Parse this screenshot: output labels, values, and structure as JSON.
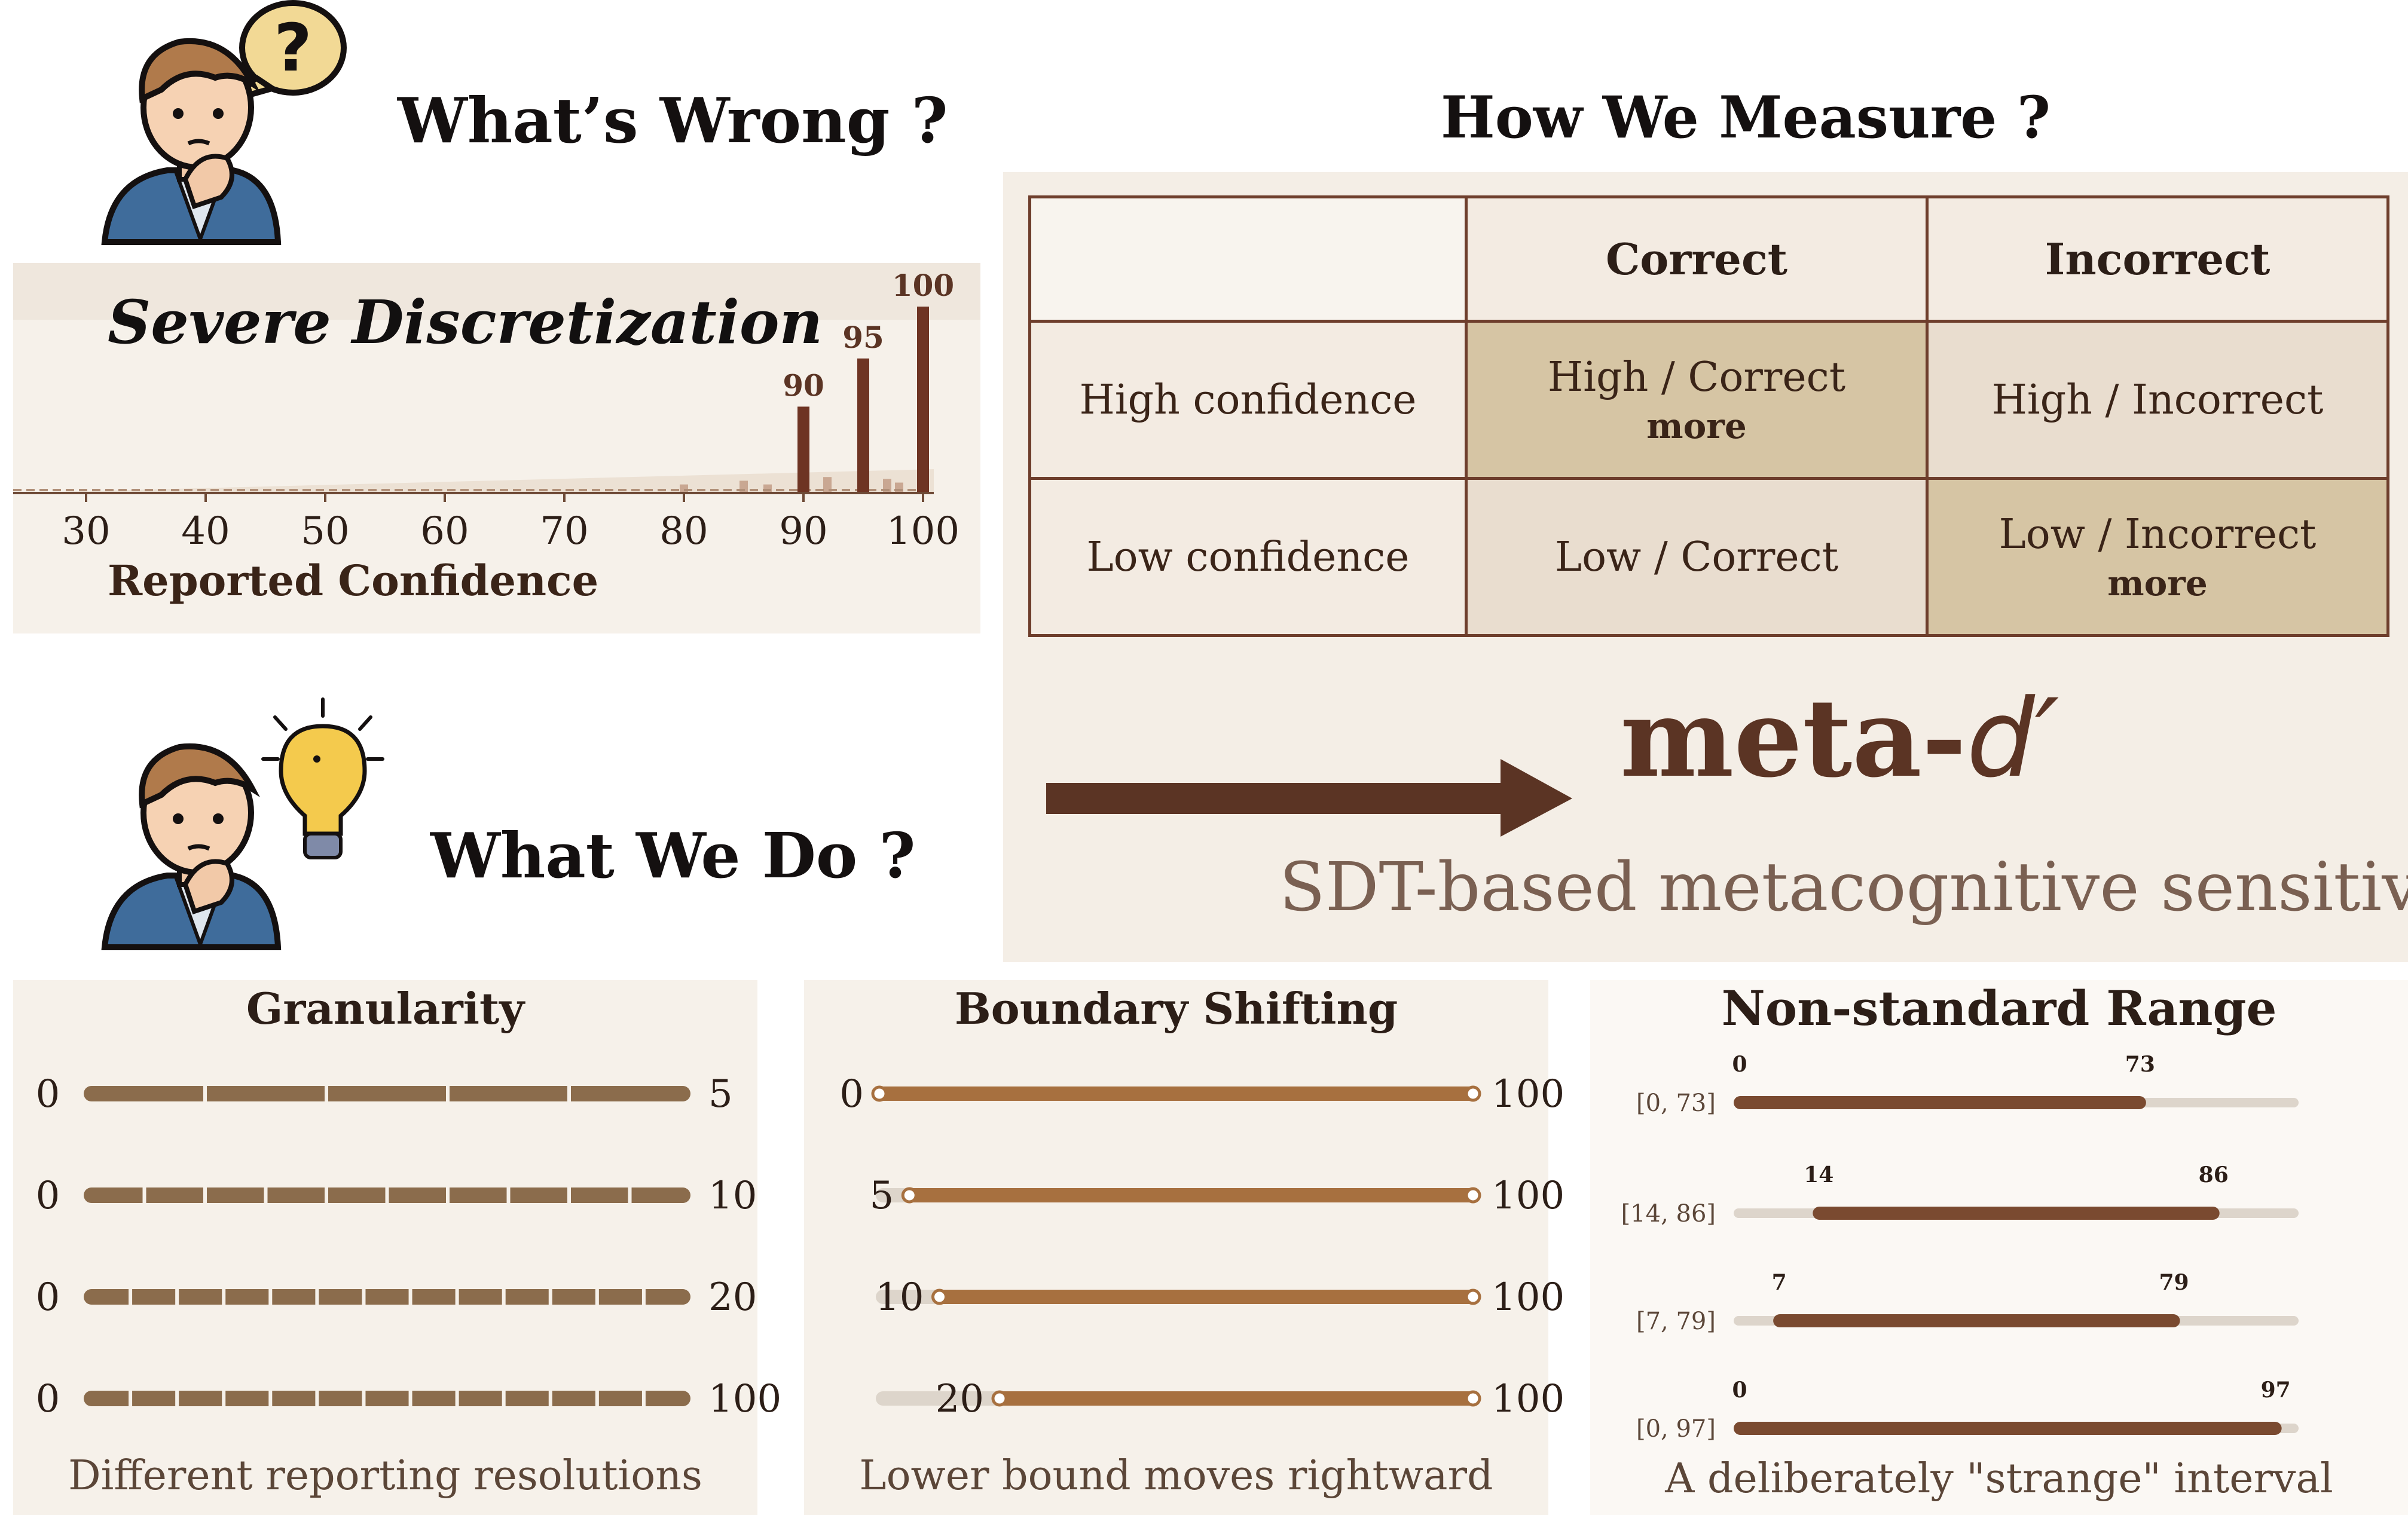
{
  "headings": {
    "whats_wrong": "What’s Wrong ?",
    "how_we_measure": "How We Measure ?",
    "what_we_do": "What We Do ?"
  },
  "discretization": {
    "title": "Severe Discretization",
    "xlabel": "Reported Confidence"
  },
  "chart_data": {
    "type": "bar",
    "title": "Severe Discretization",
    "xlabel": "Reported Confidence",
    "ylabel": "",
    "x_ticks": [
      30,
      40,
      50,
      60,
      70,
      80,
      90,
      100
    ],
    "xlim": [
      28,
      101
    ],
    "highlighted_bars": [
      {
        "x": 90,
        "value": 0.46,
        "label": "90"
      },
      {
        "x": 95,
        "value": 0.72,
        "label": "95"
      },
      {
        "x": 100,
        "value": 1.0,
        "label": "100"
      }
    ],
    "minor_bars": [
      {
        "x": 80,
        "value": 0.04
      },
      {
        "x": 85,
        "value": 0.06
      },
      {
        "x": 87,
        "value": 0.04
      },
      {
        "x": 92,
        "value": 0.08
      },
      {
        "x": 97,
        "value": 0.07
      },
      {
        "x": 98,
        "value": 0.05
      }
    ]
  },
  "table": {
    "col_headers": [
      "Correct",
      "Incorrect"
    ],
    "rows": [
      {
        "label": "High confidence",
        "correct": "High / Correct",
        "correct_note": "more",
        "incorrect": "High / Incorrect",
        "incorrect_note": ""
      },
      {
        "label": "Low confidence",
        "correct": "Low / Correct",
        "correct_note": "",
        "incorrect": "Low / Incorrect",
        "incorrect_note": "more"
      }
    ]
  },
  "meta": {
    "prefix": "meta-",
    "symbol": "d′",
    "subtitle": "SDT-based metacognitive sensitivity"
  },
  "granularity": {
    "title": "Granularity",
    "caption": "Different reporting resolutions",
    "bars": [
      {
        "min": "0",
        "max": "5",
        "segments": 5
      },
      {
        "min": "0",
        "max": "10",
        "segments": 10
      },
      {
        "min": "0",
        "max": "20",
        "segments": 20
      },
      {
        "min": "0",
        "max": "100",
        "segments": 20
      }
    ]
  },
  "boundary": {
    "title": "Boundary Shifting",
    "caption": "Lower bound moves rightward",
    "bars": [
      {
        "min": "0",
        "max": "100",
        "lo": 0,
        "hi": 100
      },
      {
        "min": "5",
        "max": "100",
        "lo": 5,
        "hi": 100
      },
      {
        "min": "10",
        "max": "100",
        "lo": 10,
        "hi": 100
      },
      {
        "min": "20",
        "max": "100",
        "lo": 20,
        "hi": 100
      }
    ]
  },
  "nonstandard": {
    "title": "Non-standard Range",
    "caption": "A deliberately \"strange\" interval",
    "bars": [
      {
        "label": "[0, 73]",
        "lo": 0,
        "hi": 73,
        "lo_label": "0",
        "hi_label": "73"
      },
      {
        "label": "[14, 86]",
        "lo": 14,
        "hi": 86,
        "lo_label": "14",
        "hi_label": "86"
      },
      {
        "label": "[7, 79]",
        "lo": 7,
        "hi": 79,
        "lo_label": "7",
        "hi_label": "79"
      },
      {
        "label": "[0, 97]",
        "lo": 0,
        "hi": 97,
        "lo_label": "0",
        "hi_label": "97"
      }
    ]
  },
  "colors": {
    "dark_brown": "#5b3424",
    "bar_brown": "#6e3423",
    "gran_bar": "#8b6c4c",
    "boundary_bar": "#a7703f",
    "range_bar": "#7a4a30",
    "track": "#ddd5cb"
  }
}
